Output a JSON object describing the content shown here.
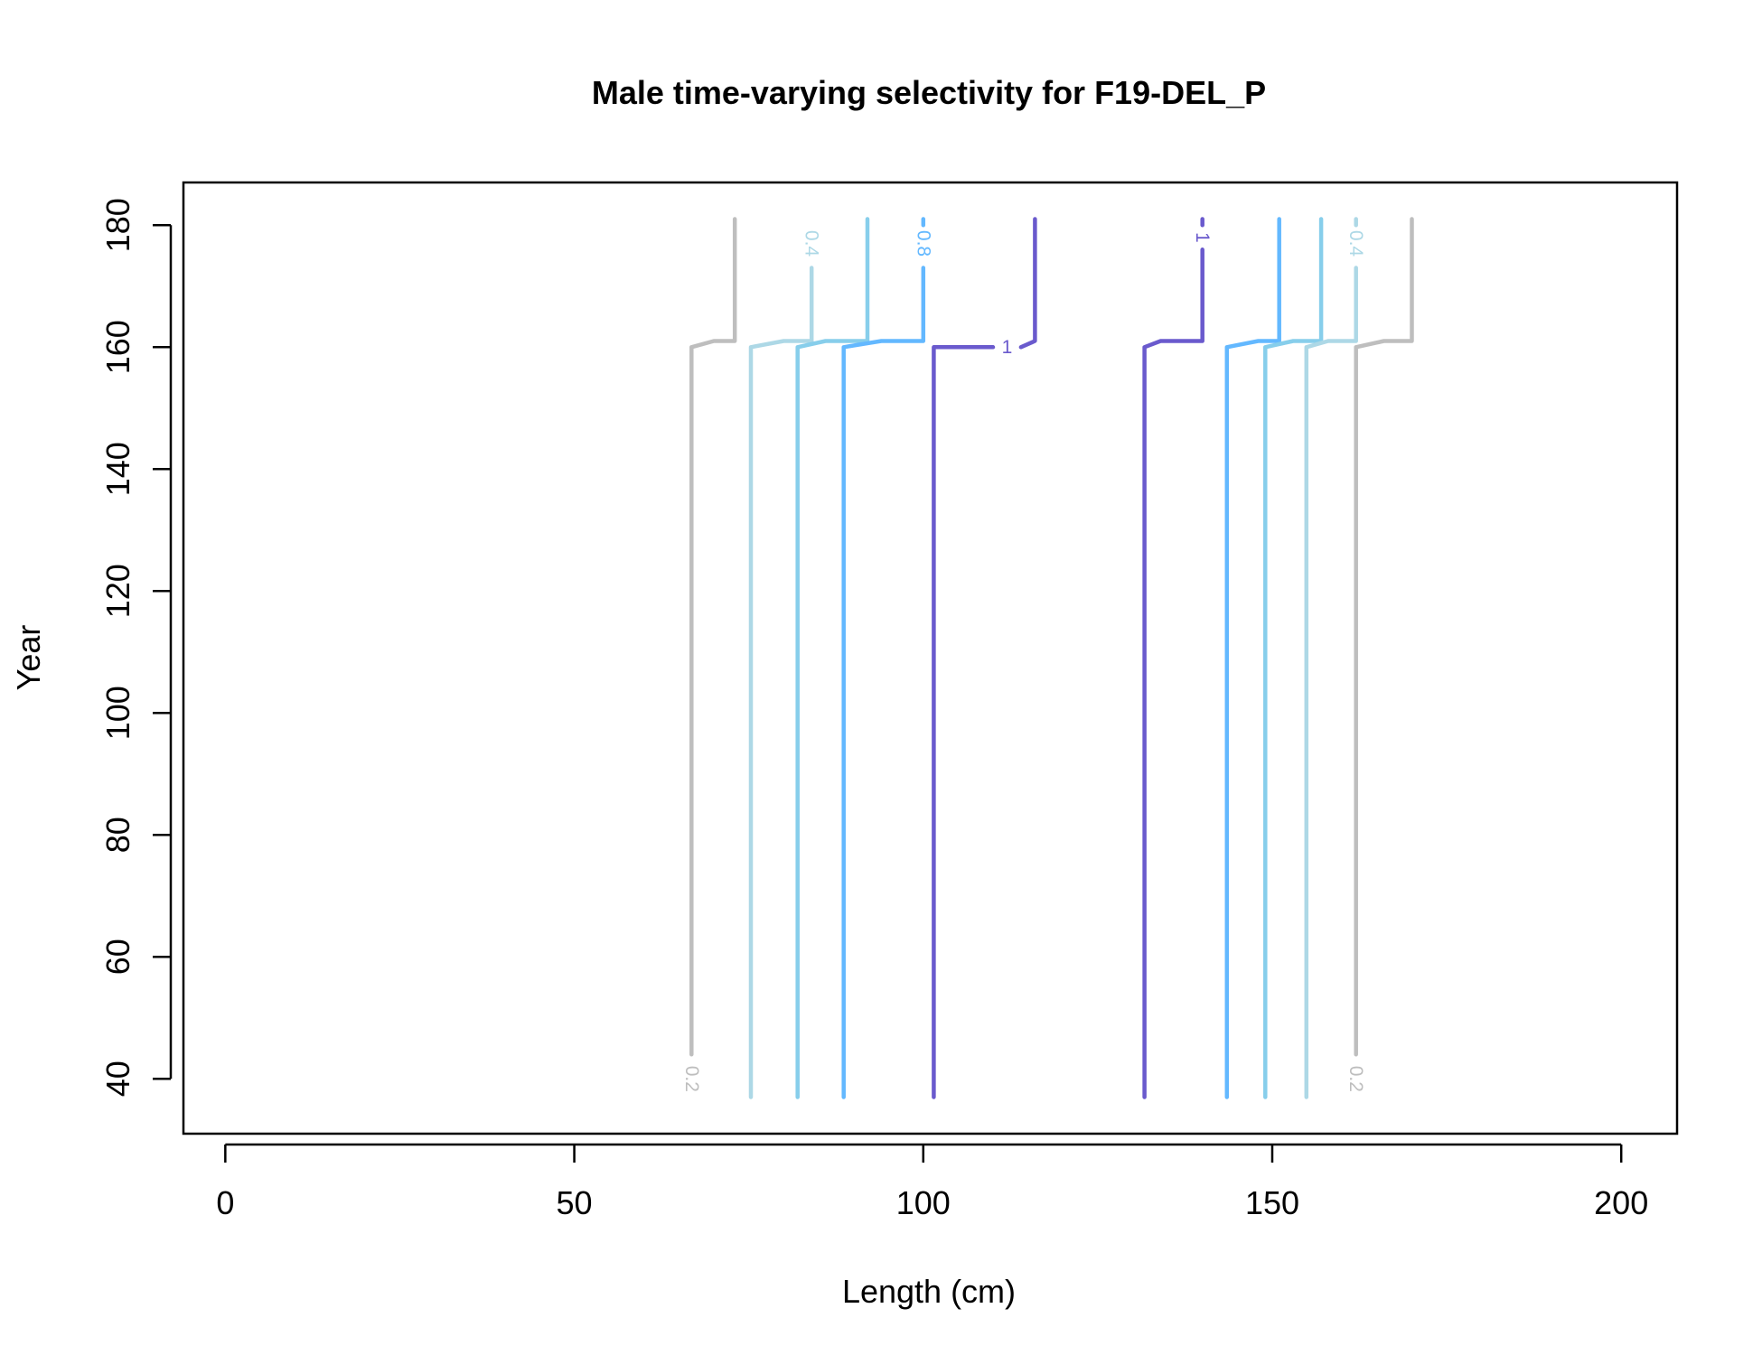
{
  "chart_data": {
    "type": "line",
    "title": "Male time-varying selectivity for F19-DEL_P",
    "xlabel": "Length (cm)",
    "ylabel": "Year",
    "xlim": [
      -6,
      208
    ],
    "ylim": [
      31,
      187
    ],
    "x_ticks": [
      0,
      50,
      100,
      150,
      200
    ],
    "y_ticks": [
      40,
      60,
      80,
      100,
      120,
      140,
      160,
      180
    ],
    "grid": false,
    "legend": "none",
    "series": [
      {
        "level": "0.2",
        "color": "#bebebe",
        "points": [
          [
            66.8,
            44
          ],
          [
            66.8,
            160
          ],
          [
            70,
            161
          ],
          [
            73,
            161
          ],
          [
            73,
            181
          ]
        ]
      },
      {
        "level": "",
        "color": "#add8e6",
        "points": [
          [
            75.3,
            37
          ],
          [
            75.3,
            160
          ],
          [
            80,
            161
          ],
          [
            84,
            161
          ]
        ]
      },
      {
        "level": "0.4",
        "color": "#add8e6",
        "points": [
          [
            84,
            161
          ],
          [
            84,
            173
          ]
        ]
      },
      {
        "level": "",
        "color": "#87ceeb",
        "points": [
          [
            82,
            37
          ],
          [
            82,
            160
          ],
          [
            86,
            161
          ],
          [
            92,
            161
          ],
          [
            92,
            181
          ]
        ]
      },
      {
        "level": "",
        "color": "#63b8ff",
        "points": [
          [
            88.6,
            37
          ],
          [
            88.6,
            160
          ],
          [
            94,
            161
          ],
          [
            100,
            161
          ],
          [
            100,
            173
          ]
        ]
      },
      {
        "level": "0.8",
        "color": "#63b8ff",
        "points": [
          [
            100,
            180
          ],
          [
            100,
            181
          ]
        ]
      },
      {
        "level": "1",
        "color": "#6a5acd",
        "points": [
          [
            101.5,
            37
          ],
          [
            101.5,
            160
          ],
          [
            110,
            160
          ]
        ]
      },
      {
        "level": "",
        "color": "#6a5acd",
        "points": [
          [
            114,
            160
          ],
          [
            116,
            161
          ],
          [
            116,
            181
          ]
        ]
      },
      {
        "level": "",
        "color": "#6a5acd",
        "points": [
          [
            131.7,
            37
          ],
          [
            131.7,
            160
          ],
          [
            134,
            161
          ],
          [
            140,
            161
          ],
          [
            140,
            176
          ]
        ]
      },
      {
        "level": "1",
        "color": "#6a5acd",
        "points": [
          [
            140,
            180
          ],
          [
            140,
            181
          ]
        ]
      },
      {
        "level": "",
        "color": "#63b8ff",
        "points": [
          [
            143.5,
            37
          ],
          [
            143.5,
            160
          ],
          [
            148,
            161
          ],
          [
            151,
            161
          ],
          [
            151,
            181
          ]
        ]
      },
      {
        "level": "",
        "color": "#87ceeb",
        "points": [
          [
            149,
            37
          ],
          [
            149,
            160
          ],
          [
            153,
            161
          ],
          [
            157,
            161
          ],
          [
            157,
            181
          ]
        ]
      },
      {
        "level": "",
        "color": "#add8e6",
        "points": [
          [
            154.9,
            37
          ],
          [
            154.9,
            160
          ],
          [
            158,
            161
          ],
          [
            162,
            161
          ],
          [
            162,
            173
          ]
        ]
      },
      {
        "level": "0.4",
        "color": "#add8e6",
        "points": [
          [
            162,
            180
          ],
          [
            162,
            181
          ]
        ]
      },
      {
        "level": "0.2",
        "color": "#bebebe",
        "points": [
          [
            162,
            44
          ],
          [
            162,
            160
          ],
          [
            166,
            161
          ],
          [
            170,
            161
          ],
          [
            170,
            181
          ]
        ]
      }
    ],
    "contour_labels": [
      {
        "text": "0.2",
        "x": 66.8,
        "y": 40,
        "rotate": 90,
        "color": "#bebebe"
      },
      {
        "text": "0.4",
        "x": 84,
        "y": 177,
        "rotate": 90,
        "color": "#add8e6"
      },
      {
        "text": "0.8",
        "x": 100,
        "y": 177,
        "rotate": 90,
        "color": "#63b8ff"
      },
      {
        "text": "1",
        "x": 112,
        "y": 160,
        "rotate": 0,
        "color": "#6a5acd"
      },
      {
        "text": "1",
        "x": 140,
        "y": 178,
        "rotate": 90,
        "color": "#6a5acd"
      },
      {
        "text": "0.4",
        "x": 162,
        "y": 177,
        "rotate": 90,
        "color": "#add8e6"
      },
      {
        "text": "0.2",
        "x": 162,
        "y": 40,
        "rotate": 90,
        "color": "#bebebe"
      }
    ]
  }
}
